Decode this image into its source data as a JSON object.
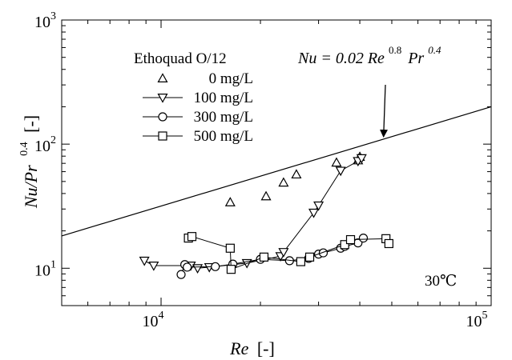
{
  "chart_data": {
    "type": "scatter",
    "xscale": "log",
    "yscale": "log",
    "xlim": [
      5000,
      100000
    ],
    "ylim": [
      5,
      1000
    ],
    "xlabel": {
      "main": "Re",
      "unit": "[-]"
    },
    "ylabel": {
      "main": "Nu/Pr",
      "exp": "0.4",
      "unit": "[-]"
    },
    "ticks": {
      "x": [
        {
          "base": "10",
          "exp": "4",
          "value": 10000
        },
        {
          "base": "10",
          "exp": "5",
          "value": 100000
        }
      ],
      "y": [
        {
          "base": "10",
          "exp": "1",
          "value": 10
        },
        {
          "base": "10",
          "exp": "2",
          "value": 100
        },
        {
          "base": "10",
          "exp": "3",
          "value": 1000
        }
      ]
    },
    "legend": {
      "title": "Ethoquad O/12",
      "placement": "top-left"
    },
    "correlation": {
      "label_parts": {
        "lhs": "Nu = 0.02 Re",
        "exp1": "0.8",
        "mid": "Pr",
        "exp2": "0.4"
      },
      "coefficient": 0.02,
      "exponent": 0.8,
      "x_start": 5000,
      "x_end": 100000,
      "arrow_target_x": 48000
    },
    "annotation": "30℃",
    "series": [
      {
        "name": "0 mg/L",
        "marker": "triangle-up",
        "connected": false,
        "points": [
          [
            16200,
            34
          ],
          [
            20800,
            38
          ],
          [
            23500,
            49
          ],
          [
            25700,
            57
          ],
          [
            34000,
            71
          ],
          [
            40000,
            79
          ],
          [
            39500,
            74
          ]
        ]
      },
      {
        "name": "100 mg/L",
        "marker": "triangle-down",
        "connected": true,
        "points": [
          [
            8900,
            11.5
          ],
          [
            9500,
            10.5
          ],
          [
            12300,
            10.5
          ],
          [
            12900,
            10.0
          ],
          [
            14000,
            10.2
          ],
          [
            18200,
            11.0
          ],
          [
            23000,
            12.5
          ],
          [
            23500,
            13.5
          ],
          [
            29000,
            28
          ],
          [
            30000,
            32
          ],
          [
            35000,
            61
          ],
          [
            39500,
            73
          ],
          [
            40500,
            77
          ]
        ]
      },
      {
        "name": "300 mg/L",
        "marker": "circle",
        "connected": true,
        "points": [
          [
            11500,
            8.9
          ],
          [
            11800,
            10.7
          ],
          [
            12000,
            10.2
          ],
          [
            14600,
            10.3
          ],
          [
            16500,
            10.8
          ],
          [
            20000,
            11.8
          ],
          [
            24500,
            11.5
          ],
          [
            28000,
            12.0
          ],
          [
            30000,
            13.0
          ],
          [
            31000,
            13.3
          ],
          [
            35000,
            14.5
          ],
          [
            36000,
            15.0
          ],
          [
            39500,
            16.0
          ],
          [
            41000,
            17.5
          ]
        ]
      },
      {
        "name": "500 mg/L",
        "marker": "square",
        "connected": true,
        "points": [
          [
            12100,
            17.5
          ],
          [
            12400,
            18.0
          ],
          [
            16200,
            14.5
          ],
          [
            16300,
            9.8
          ],
          [
            20500,
            12.3
          ],
          [
            26500,
            11.3
          ],
          [
            28200,
            12.3
          ],
          [
            36000,
            15.5
          ],
          [
            37500,
            17.0
          ],
          [
            48000,
            17.3
          ],
          [
            49000,
            15.8
          ]
        ]
      }
    ]
  }
}
